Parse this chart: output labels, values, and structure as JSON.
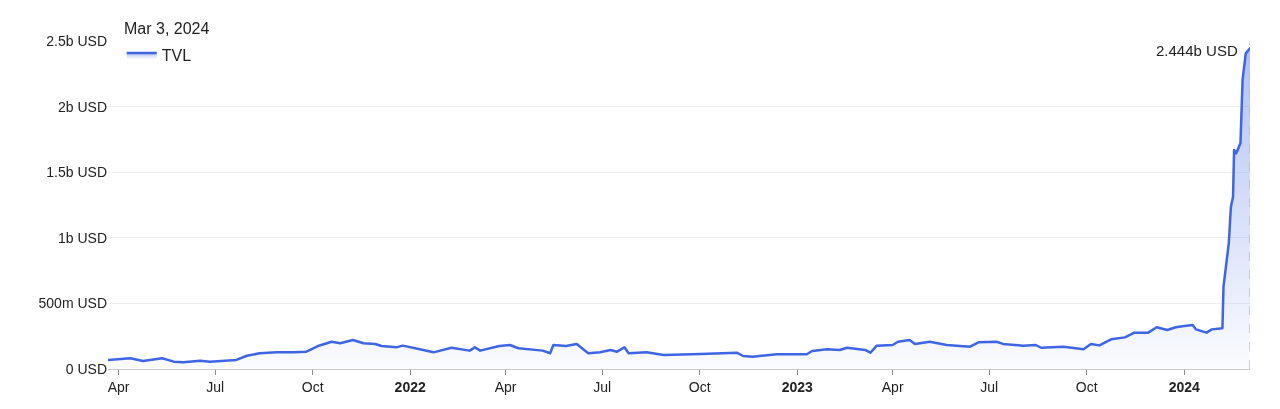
{
  "chart_data": {
    "type": "area",
    "x": [
      "2021-03-22",
      "2021-04-12",
      "2021-04-24",
      "2021-05-12",
      "2021-05-23",
      "2021-06-01",
      "2021-06-17",
      "2021-06-26",
      "2021-07-21",
      "2021-07-31",
      "2021-08-12",
      "2021-08-28",
      "2021-09-13",
      "2021-09-25",
      "2021-10-06",
      "2021-10-19",
      "2021-10-27",
      "2021-11-08",
      "2021-11-18",
      "2021-11-29",
      "2021-12-05",
      "2021-12-19",
      "2021-12-25",
      "2022-01-10",
      "2022-01-23",
      "2022-02-09",
      "2022-02-26",
      "2022-03-03",
      "2022-03-08",
      "2022-03-26",
      "2022-04-05",
      "2022-04-13",
      "2022-05-06",
      "2022-05-13",
      "2022-05-16",
      "2022-05-28",
      "2022-06-07",
      "2022-06-12",
      "2022-06-18",
      "2022-06-29",
      "2022-07-09",
      "2022-07-15",
      "2022-07-22",
      "2022-07-26",
      "2022-08-12",
      "2022-08-28",
      "2022-10-02",
      "2022-11-05",
      "2022-11-11",
      "2022-11-20",
      "2022-12-13",
      "2023-01-10",
      "2023-01-15",
      "2023-01-29",
      "2023-02-10",
      "2023-02-17",
      "2023-03-06",
      "2023-03-11",
      "2023-03-17",
      "2023-04-01",
      "2023-04-06",
      "2023-04-17",
      "2023-04-22",
      "2023-05-06",
      "2023-05-22",
      "2023-06-13",
      "2023-06-21",
      "2023-07-08",
      "2023-07-14",
      "2023-08-02",
      "2023-08-14",
      "2023-08-19",
      "2023-09-09",
      "2023-09-28",
      "2023-10-05",
      "2023-10-13",
      "2023-10-24",
      "2023-11-06",
      "2023-11-15",
      "2023-11-28",
      "2023-12-06",
      "2023-12-16",
      "2023-12-24",
      "2024-01-01",
      "2024-01-09",
      "2024-01-12",
      "2024-01-22",
      "2024-01-27",
      "2024-02-06",
      "2024-02-07",
      "2024-02-12",
      "2024-02-14",
      "2024-02-16",
      "2024-02-17",
      "2024-02-19",
      "2024-02-23",
      "2024-02-25",
      "2024-02-28",
      "2024-03-03"
    ],
    "series": [
      {
        "name": "TVL",
        "color": "#3d65e4",
        "values": [
          68000000,
          82000000,
          61000000,
          82000000,
          56000000,
          51000000,
          63000000,
          56000000,
          69000000,
          101000000,
          120000000,
          127000000,
          127000000,
          132000000,
          175000000,
          208000000,
          196000000,
          221000000,
          196000000,
          191000000,
          175000000,
          165000000,
          178000000,
          150000000,
          127000000,
          162000000,
          140000000,
          165000000,
          140000000,
          175000000,
          183000000,
          158000000,
          140000000,
          120000000,
          183000000,
          175000000,
          191000000,
          158000000,
          120000000,
          127000000,
          145000000,
          132000000,
          165000000,
          120000000,
          127000000,
          107000000,
          114000000,
          124000000,
          99000000,
          94000000,
          112000000,
          112000000,
          137000000,
          150000000,
          145000000,
          162000000,
          145000000,
          124000000,
          178000000,
          183000000,
          208000000,
          221000000,
          191000000,
          208000000,
          183000000,
          170000000,
          203000000,
          208000000,
          191000000,
          178000000,
          183000000,
          162000000,
          170000000,
          150000000,
          191000000,
          180000000,
          226000000,
          241000000,
          277000000,
          277000000,
          318000000,
          297000000,
          318000000,
          328000000,
          335000000,
          302000000,
          277000000,
          302000000,
          310000000,
          627000000,
          960000000,
          1237000000,
          1313000000,
          1669000000,
          1644000000,
          1720000000,
          2203000000,
          2406000000,
          2444000000
        ],
        "value_labels": [
          null,
          null,
          null,
          null,
          null,
          null,
          null,
          null,
          null,
          null,
          null,
          null,
          null,
          null,
          null,
          null,
          null,
          null,
          null,
          null,
          null,
          null,
          null,
          null,
          null,
          null,
          null,
          null,
          null,
          null,
          null,
          null,
          null,
          null,
          null,
          null,
          null,
          null,
          null,
          null,
          null,
          null,
          null,
          null,
          null,
          null,
          null,
          null,
          null,
          null,
          null,
          null,
          null,
          null,
          null,
          null,
          null,
          null,
          null,
          null,
          null,
          null,
          null,
          null,
          null,
          null,
          null,
          null,
          null,
          null,
          null,
          null,
          null,
          null,
          null,
          null,
          null,
          null,
          null,
          null,
          null,
          null,
          null,
          null,
          null,
          null,
          null,
          null,
          null,
          null,
          null,
          null,
          null,
          null,
          null,
          null,
          null,
          null,
          "2.444b USD"
        ]
      }
    ],
    "xlim": [
      "2021-03-22",
      "2024-03-03"
    ],
    "ylim": [
      0,
      2500000000
    ],
    "xticks": [
      {
        "value": "2021-04-01",
        "label": "Apr"
      },
      {
        "value": "2021-07-01",
        "label": "Jul"
      },
      {
        "value": "2021-10-01",
        "label": "Oct"
      },
      {
        "value": "2022-01-01",
        "label": "2022"
      },
      {
        "value": "2022-04-01",
        "label": "Apr"
      },
      {
        "value": "2022-07-01",
        "label": "Jul"
      },
      {
        "value": "2022-10-01",
        "label": "Oct"
      },
      {
        "value": "2023-01-01",
        "label": "2023"
      },
      {
        "value": "2023-04-01",
        "label": "Apr"
      },
      {
        "value": "2023-07-01",
        "label": "Jul"
      },
      {
        "value": "2023-10-01",
        "label": "Oct"
      },
      {
        "value": "2024-01-01",
        "label": "2024"
      }
    ],
    "yticks": [
      {
        "value": 0,
        "label": "0 USD"
      },
      {
        "value": 500000000,
        "label": "500m USD"
      },
      {
        "value": 1000000000,
        "label": "1b USD"
      },
      {
        "value": 1500000000,
        "label": "1.5b USD"
      },
      {
        "value": 2000000000,
        "label": "2b USD"
      },
      {
        "value": 2500000000,
        "label": "2.5b USD"
      }
    ],
    "grid": "y",
    "legend": "top left",
    "annotations": [
      "Mar 3, 2024"
    ],
    "ref_lines": [
      {
        "axis": "x",
        "value": "2024-03-03",
        "color": "#b3b8c2",
        "line_style": "dashed"
      }
    ]
  }
}
